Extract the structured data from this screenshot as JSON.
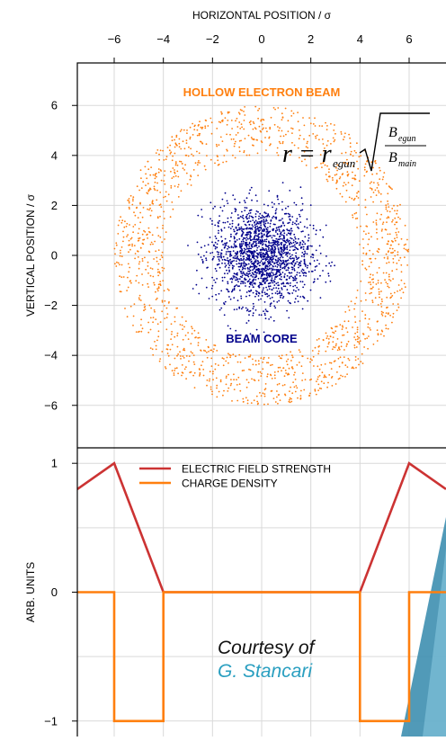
{
  "chart_data": [
    {
      "type": "scatter",
      "xlabel": "HORIZONTAL POSITION / σ",
      "ylabel": "VERTICAL POSITION / σ",
      "xlim": [
        -7.5,
        7.5
      ],
      "ylim": [
        -7.7,
        7.7
      ],
      "x_ticks": [
        "−6",
        "−4",
        "−2",
        "0",
        "2",
        "4",
        "6"
      ],
      "y_ticks": [
        "6",
        "4",
        "2",
        "0",
        "−2",
        "−4",
        "−6"
      ],
      "x_tick_values": [
        -6,
        -4,
        -2,
        0,
        2,
        4,
        6
      ],
      "y_tick_values": [
        6,
        4,
        2,
        0,
        -2,
        -4,
        -6
      ],
      "grid": true,
      "series": [
        {
          "name": "HOLLOW ELECTRON BEAM",
          "color": "#ff7f0e",
          "distribution": "annulus",
          "r_inner": 4.0,
          "r_outer": 6.0,
          "points": 1500
        },
        {
          "name": "BEAM CORE",
          "color": "#00008b",
          "distribution": "gaussian",
          "sigma": 1.0,
          "points": 1700
        }
      ],
      "annotation": {
        "lhs": "r",
        "rhs": "r",
        "rhs_sub": "egun",
        "num": "B",
        "num_sub": "egun",
        "den": "B",
        "den_sub": "main"
      }
    },
    {
      "type": "line",
      "ylabel": "ARB. UNITS",
      "xlim": [
        -7.5,
        7.5
      ],
      "ylim": [
        -1.12,
        1.12
      ],
      "y_ticks": [
        "1",
        "0",
        "−1"
      ],
      "y_tick_values": [
        1,
        0,
        -1
      ],
      "grid": true,
      "legend": "top-left",
      "series": [
        {
          "name": "ELECTRIC FIELD STRENGTH",
          "color": "#cc3333",
          "x": [
            -7.5,
            -6,
            -4,
            4,
            6,
            7.5
          ],
          "y": [
            0.8,
            1,
            0,
            0,
            1,
            0.8
          ]
        },
        {
          "name": "CHARGE DENSITY",
          "color": "#ff7f0e",
          "x": [
            -7.5,
            -6,
            -6,
            -4,
            -4,
            4,
            4,
            6,
            6,
            7.5
          ],
          "y": [
            0,
            0,
            -1,
            -1,
            0,
            0,
            -1,
            -1,
            0,
            0
          ]
        }
      ]
    }
  ],
  "credit": {
    "line1": "Courtesy of",
    "line2": "G. Stancari",
    "line1_color": "#111111",
    "line2_color": "#2a9fc0"
  }
}
